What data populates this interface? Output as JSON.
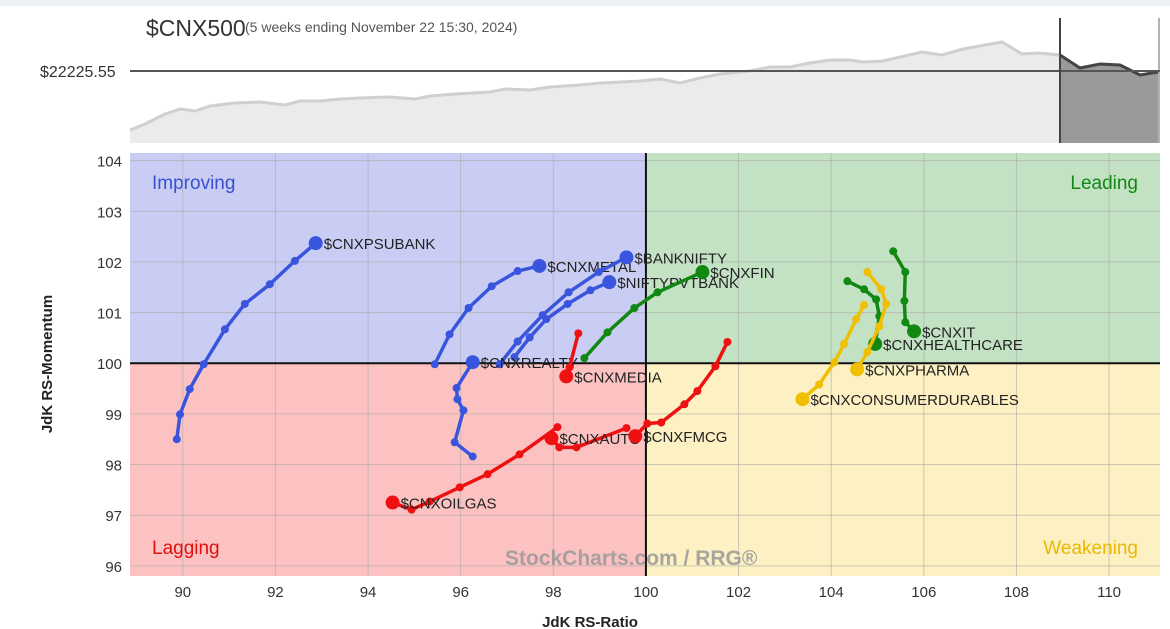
{
  "header": {
    "symbol": "$CNX500",
    "period": "(5 weeks ending November 22 15:30, 2024)",
    "reference_price": "$22225.55"
  },
  "watermark": "StockCharts.com / RRG®",
  "chart_data": {
    "type": "scatter",
    "title": "",
    "xlabel": "JdK RS-Ratio",
    "ylabel": "JdK RS-Momentum",
    "xlim": [
      88.86,
      111.1
    ],
    "ylim": [
      95.8,
      104.15
    ],
    "xticks": [
      "90",
      "92",
      "94",
      "96",
      "98",
      "100",
      "102",
      "104",
      "106",
      "108",
      "110"
    ],
    "yticks": [
      "96",
      "97",
      "98",
      "99",
      "100",
      "101",
      "102",
      "103",
      "104"
    ],
    "grid": true,
    "center": [
      100,
      100
    ],
    "quadrants": [
      {
        "label": "Improving",
        "position": "top-left",
        "bg": "#c9cdf4",
        "color": "#3a50d0"
      },
      {
        "label": "Leading",
        "position": "top-right",
        "bg": "#c3e1c3",
        "color": "#118811"
      },
      {
        "label": "Lagging",
        "position": "bottom-left",
        "bg": "#fcc2c2",
        "color": "#e01010"
      },
      {
        "label": "Weakening",
        "position": "bottom-right",
        "bg": "#fdf0c2",
        "color": "#eab800"
      }
    ],
    "series": [
      {
        "name": "$CNXPSUBANK",
        "color": "#3a55dd",
        "points": [
          [
            89.87,
            98.5
          ],
          [
            89.94,
            98.99
          ],
          [
            90.15,
            99.49
          ],
          [
            90.45,
            99.98
          ],
          [
            90.91,
            100.67
          ],
          [
            91.34,
            101.17
          ],
          [
            91.88,
            101.56
          ],
          [
            92.42,
            102.02
          ],
          [
            92.87,
            102.37
          ]
        ]
      },
      {
        "name": "$CNXMETAL",
        "color": "#3a55dd",
        "points": [
          [
            95.44,
            99.98
          ],
          [
            95.76,
            100.57
          ],
          [
            96.17,
            101.09
          ],
          [
            96.67,
            101.52
          ],
          [
            97.23,
            101.82
          ],
          [
            97.7,
            101.92
          ]
        ]
      },
      {
        "name": "$BANKNIFTY",
        "color": "#3a55dd",
        "points": [
          [
            96.84,
            99.98
          ],
          [
            97.23,
            100.43
          ],
          [
            97.77,
            100.95
          ],
          [
            98.33,
            101.4
          ],
          [
            98.98,
            101.8
          ],
          [
            99.58,
            102.09
          ]
        ]
      },
      {
        "name": "$NIFTYPVTBANK",
        "color": "#3a55dd",
        "points": [
          [
            97.16,
            100.12
          ],
          [
            97.49,
            100.51
          ],
          [
            97.85,
            100.87
          ],
          [
            98.31,
            101.17
          ],
          [
            98.8,
            101.44
          ],
          [
            99.21,
            101.6
          ]
        ]
      },
      {
        "name": "$CNXREALTY",
        "color": "#3a55dd",
        "points": [
          [
            96.26,
            98.16
          ],
          [
            95.87,
            98.44
          ],
          [
            96.06,
            99.07
          ],
          [
            95.93,
            99.29
          ],
          [
            95.91,
            99.51
          ],
          [
            96.26,
            100.02
          ]
        ]
      },
      {
        "name": "$CNXMEDIA",
        "color": "#ee1111",
        "points": [
          [
            98.54,
            100.59
          ],
          [
            98.35,
            99.92
          ],
          [
            98.28,
            99.74
          ]
        ]
      },
      {
        "name": "$CNXFIN",
        "color": "#118811",
        "points": [
          [
            98.67,
            100.1
          ],
          [
            99.17,
            100.61
          ],
          [
            99.75,
            101.09
          ],
          [
            100.25,
            101.4
          ],
          [
            101.22,
            101.8
          ]
        ]
      },
      {
        "name": "$CNXAUTO",
        "color": "#ee1111",
        "points": [
          [
            99.58,
            98.72
          ],
          [
            98.5,
            98.34
          ],
          [
            98.13,
            98.34
          ],
          [
            97.96,
            98.52
          ]
        ]
      },
      {
        "name": "$CNXFMCG",
        "color": "#ee1111",
        "points": [
          [
            101.76,
            100.42
          ],
          [
            101.5,
            99.94
          ],
          [
            101.11,
            99.45
          ],
          [
            100.83,
            99.19
          ],
          [
            100.33,
            98.83
          ],
          [
            100.03,
            98.81
          ],
          [
            99.77,
            98.56
          ]
        ]
      },
      {
        "name": "$CNXOILGAS",
        "color": "#ee1111",
        "points": [
          [
            98.09,
            98.74
          ],
          [
            97.27,
            98.2
          ],
          [
            96.58,
            97.81
          ],
          [
            95.98,
            97.55
          ],
          [
            95.33,
            97.27
          ],
          [
            94.94,
            97.11
          ],
          [
            94.53,
            97.25
          ]
        ]
      },
      {
        "name": "$CNXIT",
        "color": "#118811",
        "points": [
          [
            105.34,
            102.21
          ],
          [
            105.6,
            101.8
          ],
          [
            105.58,
            101.23
          ],
          [
            105.6,
            100.81
          ],
          [
            105.79,
            100.63
          ]
        ]
      },
      {
        "name": "$CNXHEALTHCARE",
        "color": "#118811",
        "points": [
          [
            104.35,
            101.62
          ],
          [
            104.71,
            101.46
          ],
          [
            104.97,
            101.26
          ],
          [
            105.04,
            100.93
          ],
          [
            104.95,
            100.38
          ]
        ]
      },
      {
        "name": "$CNXPHARMA",
        "color": "#f0c000",
        "points": [
          [
            104.78,
            101.8
          ],
          [
            105.08,
            101.46
          ],
          [
            105.19,
            101.17
          ],
          [
            105.04,
            100.73
          ],
          [
            104.78,
            100.22
          ],
          [
            104.56,
            99.88
          ]
        ]
      },
      {
        "name": "$CNXCONSUMERDURABLES",
        "color": "#f0c000",
        "points": [
          [
            104.71,
            101.15
          ],
          [
            104.54,
            100.87
          ],
          [
            104.28,
            100.38
          ],
          [
            104.07,
            100.02
          ],
          [
            103.74,
            99.58
          ],
          [
            103.38,
            99.29
          ]
        ]
      }
    ]
  }
}
